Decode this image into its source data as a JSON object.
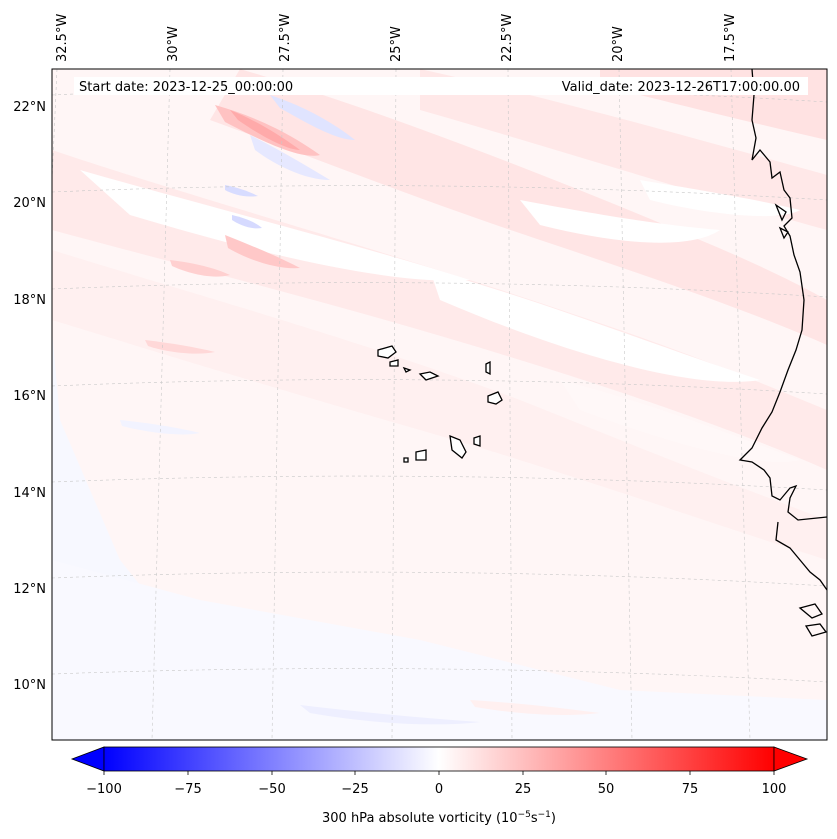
{
  "map": {
    "start_date_label": "Start date: 2023-12-25_00:00:00",
    "valid_date_label": "Valid_date: 2023-12-26T17:00:00.00",
    "lon_labels": [
      "32.5°W",
      "30°W",
      "27.5°W",
      "25°W",
      "22.5°W",
      "20°W",
      "17.5°W"
    ],
    "lat_labels": [
      "22°N",
      "20°N",
      "18°N",
      "16°N",
      "14°N",
      "12°N",
      "10°N"
    ],
    "field": "300 hPa absolute vorticity",
    "projection": "conic (curved graticule)",
    "region": "Cape Verde islands and West African coast (Senegal / Gambia / Guinea-Bissau)"
  },
  "colorbar": {
    "label": "300 hPa absolute vorticity (10",
    "label_exp1": "−5",
    "label_mid": "s",
    "label_exp2": "−1",
    "label_end": ")",
    "ticks": [
      "−100",
      "−75",
      "−50",
      "−25",
      "0",
      "25",
      "50",
      "75",
      "100"
    ],
    "min": -100,
    "max": 100,
    "colormap": "bwr",
    "extend": "both",
    "low_color": "#0000ff",
    "mid_color": "#ffffff",
    "high_color": "#ff0000"
  }
}
